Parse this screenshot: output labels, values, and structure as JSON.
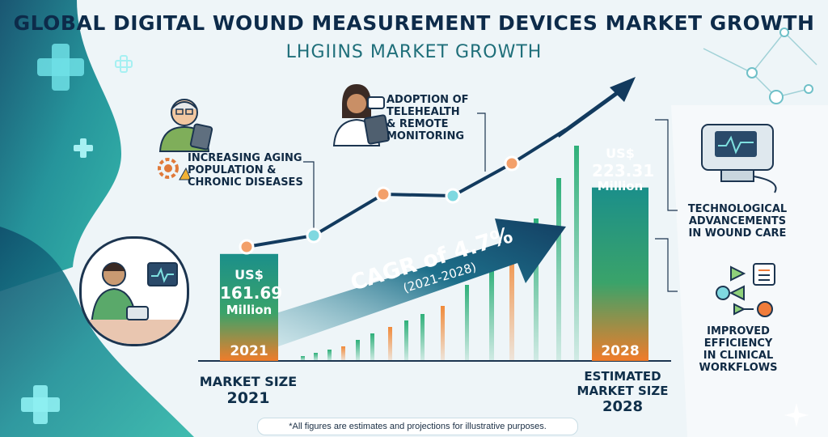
{
  "title": "GLOBAL DIGITAL WOUND MEASUREMENT DEVICES MARKET GROWTH",
  "subtitle": "LHGIINS MARKET GROWTH",
  "bars": {
    "start": {
      "currency": "US$",
      "amount": "161.69",
      "unit": "Million",
      "year": "2021"
    },
    "end": {
      "currency": "US$",
      "amount": "223.31",
      "unit": "Million",
      "year": "2028"
    }
  },
  "cagr": {
    "rate": "CAGR of 4.7%",
    "period": "(2021-2028)"
  },
  "drivers": {
    "aging": [
      "INCREASING AGING",
      "POPULATION &",
      "CHRONIC DISEASES"
    ],
    "telehealth": [
      "ADOPTION OF",
      "TELEHEALTH",
      "& REMOTE",
      "MONITORING"
    ],
    "tech": [
      "TECHNOLOGICAL",
      "ADVANCEMENTS",
      "IN WOUND CARE"
    ],
    "efficiency": [
      "IMPROVED",
      "EFFICIENCY",
      "IN CLINICAL",
      "WORKFLOWS"
    ]
  },
  "market_size_2021": [
    "MARKET SIZE",
    "2021"
  ],
  "market_size_2028": [
    "ESTIMATED",
    "MARKET SIZE",
    "2028"
  ],
  "footnote": "*All figures are estimates and projections for illustrative purposes.",
  "icons": [
    "plus-cross-icon",
    "elderly-person-icon",
    "gear-warning-icon",
    "doctor-icon",
    "tablet-icon",
    "patient-monitor-icon",
    "medical-device-icon",
    "workflow-icon",
    "trend-arrow-icon"
  ],
  "colors": {
    "teal": "#1a8e95",
    "navy": "#123a5e",
    "orange": "#f07c3a",
    "green": "#3fae6a"
  },
  "chart_data": {
    "type": "bar",
    "categories": [
      "2021",
      "2028"
    ],
    "values": [
      161.69,
      223.31
    ],
    "title": "GLOBAL DIGITAL WOUND MEASUREMENT DEVICES MARKET GROWTH",
    "ylabel": "",
    "xlabel": "",
    "unit": "US$ Million",
    "cagr_percent": 4.7,
    "cagr_period": [
      2021,
      2028
    ]
  }
}
